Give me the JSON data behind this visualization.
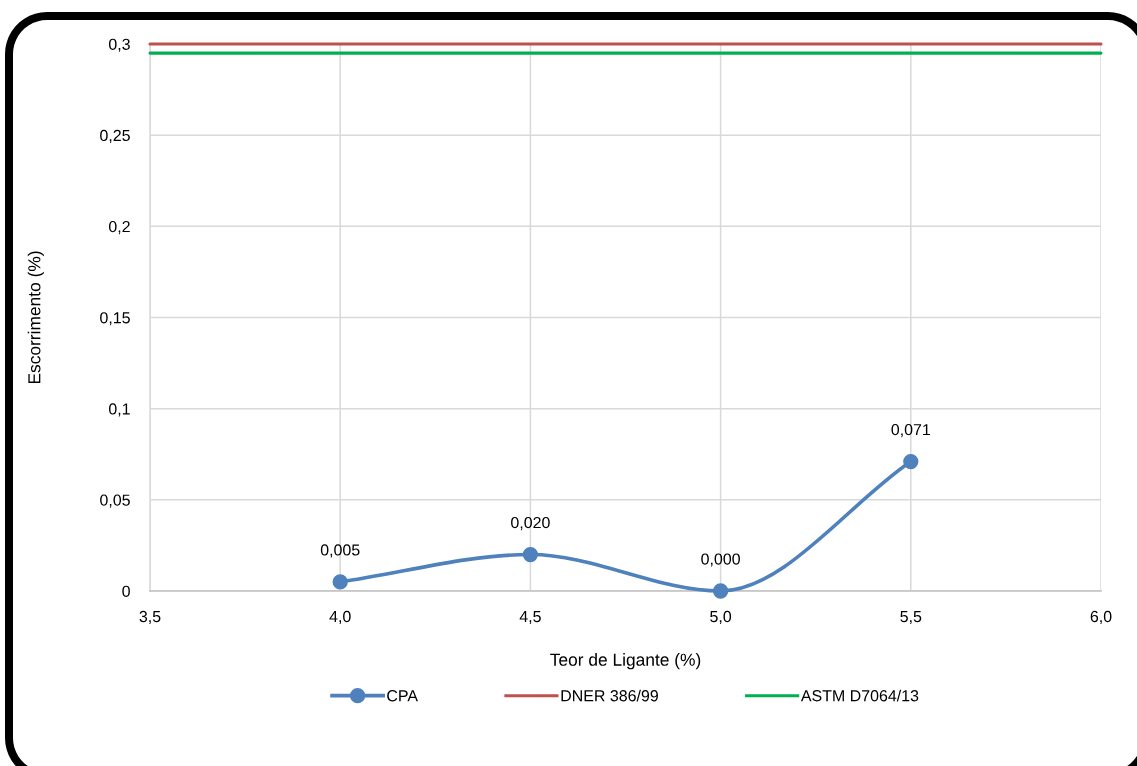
{
  "chart_data": {
    "type": "line",
    "xlabel": "Teor de Ligante (%)",
    "ylabel": "Escorrimento (%)",
    "xlim": [
      3.5,
      6.0
    ],
    "ylim": [
      0,
      0.3
    ],
    "xticks": [
      {
        "value": 3.5,
        "label": "3,5"
      },
      {
        "value": 4.0,
        "label": "4,0"
      },
      {
        "value": 4.5,
        "label": "4,5"
      },
      {
        "value": 5.0,
        "label": "5,0"
      },
      {
        "value": 5.5,
        "label": "5,5"
      },
      {
        "value": 6.0,
        "label": "6,0"
      }
    ],
    "yticks": [
      0,
      {
        "value": 0.05,
        "label": "0,05"
      },
      {
        "value": 0.1,
        "label": "0,1"
      },
      {
        "value": 0.15,
        "label": "0,15"
      },
      {
        "value": 0.2,
        "label": "0,2"
      },
      {
        "value": 0.25,
        "label": "0,25"
      },
      {
        "value": 0.3,
        "label": "0,3"
      }
    ],
    "grid": true,
    "legend": "bottom",
    "line_style": "solid",
    "series": [
      {
        "name": "CPA",
        "color": "#4f81bd",
        "marker": "circle",
        "x": [
          4.0,
          4.5,
          5.0,
          5.5
        ],
        "values": [
          0.005,
          0.02,
          0.0,
          0.071
        ],
        "value_labels": [
          "0,005",
          "0,020",
          "0,000",
          "0,071"
        ]
      },
      {
        "name": "DNER 386/99",
        "color": "#c0504d",
        "x": [
          3.5,
          6.0
        ],
        "values": [
          0.3,
          0.3
        ]
      },
      {
        "name": "ASTM D7064/13",
        "color": "#00b050",
        "x": [
          3.5,
          6.0
        ],
        "values": [
          0.295,
          0.295
        ]
      }
    ]
  }
}
